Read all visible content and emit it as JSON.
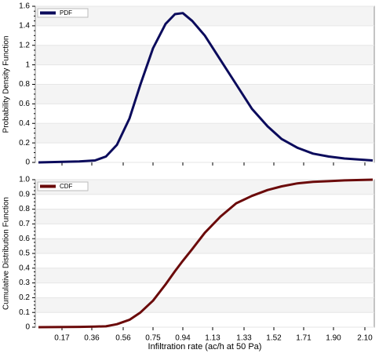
{
  "chart_data": [
    {
      "type": "line",
      "ylabel": "Probability Density Function",
      "x": [
        0.02,
        0.28,
        0.38,
        0.45,
        0.52,
        0.6,
        0.67,
        0.75,
        0.83,
        0.89,
        0.94,
        1.0,
        1.08,
        1.18,
        1.28,
        1.38,
        1.48,
        1.57,
        1.67,
        1.77,
        1.87,
        1.97,
        2.15
      ],
      "series": [
        {
          "name": "PDF",
          "color": "#0b0b5c",
          "values": [
            0,
            0.01,
            0.02,
            0.06,
            0.18,
            0.45,
            0.8,
            1.17,
            1.42,
            1.52,
            1.53,
            1.45,
            1.3,
            1.05,
            0.8,
            0.55,
            0.37,
            0.24,
            0.15,
            0.09,
            0.06,
            0.04,
            0.02
          ]
        }
      ],
      "xlim": [
        0,
        2.16
      ],
      "ylim": [
        0,
        1.6
      ],
      "yticks": [
        0,
        0.2,
        0.4,
        0.6,
        0.8,
        1,
        1.2,
        1.4,
        1.6
      ],
      "grid": true,
      "legend": "upper-left"
    },
    {
      "type": "line",
      "ylabel": "Cumulative Distribution Function",
      "xlabel": "Infiltration rate (ac/h at 50 Pa)",
      "x": [
        0.02,
        0.28,
        0.38,
        0.45,
        0.52,
        0.6,
        0.67,
        0.75,
        0.83,
        0.89,
        0.94,
        1.0,
        1.08,
        1.18,
        1.28,
        1.38,
        1.48,
        1.57,
        1.67,
        1.77,
        1.87,
        1.97,
        2.15
      ],
      "series": [
        {
          "name": "CDF",
          "color": "#6b0a0a",
          "values": [
            0,
            0.002,
            0.004,
            0.006,
            0.02,
            0.05,
            0.1,
            0.18,
            0.29,
            0.38,
            0.45,
            0.53,
            0.64,
            0.75,
            0.84,
            0.89,
            0.93,
            0.955,
            0.975,
            0.985,
            0.99,
            0.995,
            1
          ]
        }
      ],
      "xlim": [
        0,
        2.16
      ],
      "xticks": [
        0.17,
        0.36,
        0.56,
        0.75,
        0.94,
        1.13,
        1.33,
        1.52,
        1.71,
        {
          "value": 1.9,
          "label": "1.90"
        },
        {
          "value": 2.1,
          "label": "2.10"
        }
      ],
      "ylim": [
        0,
        1
      ],
      "yticks": [
        0,
        0.1,
        0.2,
        0.3,
        0.4,
        0.5,
        0.6,
        0.7,
        0.8,
        0.9,
        {
          "value": 1,
          "label": "1.0"
        }
      ],
      "grid": true,
      "legend": "upper-left"
    }
  ]
}
